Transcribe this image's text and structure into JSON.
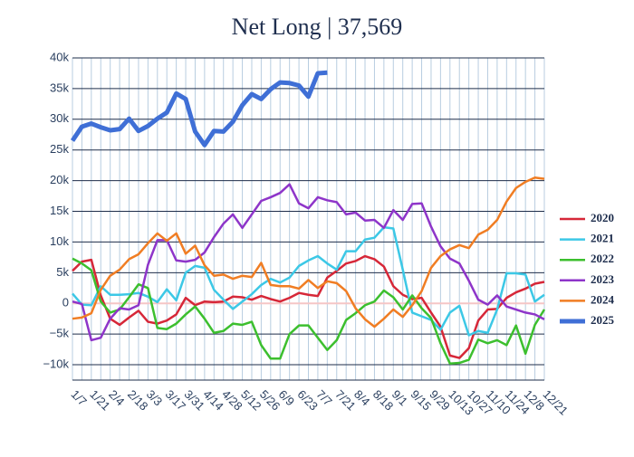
{
  "chart_data": {
    "type": "line",
    "title": "Net Long | 37,569",
    "categories": [
      "1/7",
      null,
      "1/21",
      null,
      "2/4",
      null,
      "2/18",
      null,
      "3/3",
      null,
      "3/17",
      null,
      "3/31",
      null,
      "4/14",
      null,
      "4/28",
      null,
      "5/12",
      null,
      "5/26",
      null,
      "6/9",
      null,
      "6/23",
      null,
      "7/7",
      null,
      "7/21",
      null,
      "8/4",
      null,
      "8/18",
      null,
      "9/1",
      null,
      "9/15",
      null,
      "9/29",
      null,
      "10/13",
      null,
      "10/27",
      null,
      "11/10",
      null,
      "11/24",
      null,
      "12/8",
      null,
      "12/21"
    ],
    "ylim": [
      -12500,
      40000
    ],
    "yticks": [
      {
        "value": -10000,
        "label": "−10k"
      },
      {
        "value": -5000,
        "label": "−5k"
      },
      0,
      {
        "value": 5000,
        "label": "5k"
      },
      {
        "value": 10000,
        "label": "10k"
      },
      {
        "value": 15000,
        "label": "15k"
      },
      {
        "value": 20000,
        "label": "20k"
      },
      {
        "value": 25000,
        "label": "25k"
      },
      {
        "value": 30000,
        "label": "30k"
      },
      {
        "value": 35000,
        "label": "35k"
      },
      {
        "value": 40000,
        "label": "40k"
      }
    ],
    "grid": true,
    "legend": "right",
    "series": [
      {
        "name": "2020",
        "color": "#d62738",
        "values": [
          5300,
          6800,
          7100,
          1300,
          -2500,
          -3500,
          -2300,
          -1200,
          -3000,
          -3300,
          -2800,
          -1800,
          900,
          -300,
          300,
          200,
          300,
          1100,
          1000,
          600,
          1200,
          700,
          300,
          900,
          1700,
          1400,
          1200,
          4200,
          5300,
          6500,
          6900,
          7700,
          7200,
          6000,
          2800,
          1400,
          700,
          900,
          -1500,
          -3800,
          -8500,
          -8900,
          -7300,
          -2800,
          -1000,
          -900,
          900,
          1800,
          2400,
          3200,
          3500
        ]
      },
      {
        "name": "2021",
        "color": "#3cc8e6",
        "values": [
          1600,
          -200,
          -300,
          2800,
          1400,
          1400,
          1500,
          1700,
          1100,
          200,
          2300,
          500,
          5000,
          6100,
          5800,
          2200,
          600,
          -900,
          300,
          1500,
          3000,
          4000,
          3400,
          4200,
          6100,
          7000,
          7700,
          6500,
          5500,
          8500,
          8500,
          10400,
          10700,
          12400,
          12200,
          5500,
          -1500,
          -2100,
          -2700,
          -4300,
          -1500,
          -400,
          -5200,
          -4500,
          -4800,
          -1000,
          4900,
          4900,
          4700,
          300,
          1400
        ]
      },
      {
        "name": "2022",
        "color": "#3cbf2e",
        "values": [
          7300,
          6500,
          5400,
          300,
          -1500,
          -1000,
          1000,
          3100,
          2500,
          -4000,
          -4200,
          -3300,
          -1800,
          -500,
          -2500,
          -4800,
          -4500,
          -3300,
          -3500,
          -3000,
          -6800,
          -9000,
          -9000,
          -5000,
          -3600,
          -3600,
          -5600,
          -7600,
          -6000,
          -2700,
          -1600,
          -300,
          300,
          2100,
          1000,
          -1000,
          1300,
          -800,
          -2400,
          -6500,
          -9800,
          -9700,
          -9200,
          -5900,
          -6500,
          -6000,
          -6800,
          -3600,
          -8200,
          -3500,
          -1000
        ]
      },
      {
        "name": "2023",
        "color": "#8e35c9",
        "values": [
          300,
          -100,
          -6000,
          -5600,
          -2500,
          -800,
          -1000,
          -300,
          6300,
          10300,
          10300,
          7000,
          6800,
          7100,
          8300,
          10800,
          13000,
          14500,
          12300,
          14500,
          16700,
          17300,
          18000,
          19400,
          16300,
          15500,
          17300,
          16800,
          16500,
          14500,
          14800,
          13500,
          13600,
          12300,
          15200,
          13600,
          16200,
          16300,
          12500,
          9300,
          7300,
          6500,
          3700,
          600,
          -200,
          1300,
          -500,
          -1000,
          -1500,
          -1800,
          -2600
        ]
      },
      {
        "name": "2024",
        "color": "#f07d23",
        "values": [
          -2500,
          -2300,
          -1600,
          2200,
          4500,
          5500,
          7200,
          8000,
          9800,
          11400,
          10200,
          11400,
          8100,
          9400,
          6200,
          4500,
          4700,
          4000,
          4500,
          4300,
          6600,
          3000,
          2800,
          2800,
          2400,
          3800,
          2500,
          3600,
          3300,
          2000,
          -800,
          -2600,
          -3800,
          -2500,
          -1000,
          -2200,
          -300,
          2000,
          5800,
          7700,
          8800,
          9500,
          9000,
          11200,
          12000,
          13600,
          16600,
          18800,
          19800,
          20500,
          20300
        ]
      },
      {
        "name": "2025",
        "color": "#3f6fd6",
        "values": [
          26500,
          28800,
          29300,
          28700,
          28200,
          28400,
          30100,
          28100,
          28900,
          30100,
          31100,
          34200,
          33300,
          28000,
          25800,
          28100,
          28000,
          29600,
          32300,
          34100,
          33300,
          34900,
          36000,
          35900,
          35500,
          33700,
          37500,
          37600,
          null,
          null,
          null,
          null,
          null,
          null,
          null,
          null,
          null,
          null,
          null,
          null,
          null,
          null,
          null,
          null,
          null,
          null,
          null,
          null,
          null,
          null,
          null
        ]
      }
    ]
  }
}
